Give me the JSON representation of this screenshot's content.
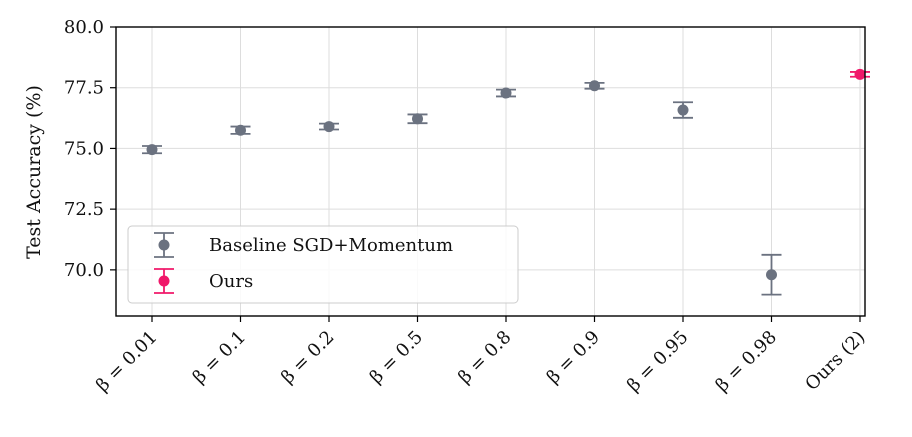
{
  "chart_data": {
    "type": "scatter",
    "title": "",
    "xlabel": "",
    "ylabel": "Test Accuracy (%)",
    "ylim": [
      68.1,
      80.0
    ],
    "yticks": [
      70.0,
      72.5,
      75.0,
      77.5,
      80.0
    ],
    "ytick_labels": [
      "70.0",
      "72.5",
      "75.0",
      "77.5",
      "80.0"
    ],
    "grid": true,
    "legend_position": "lower-left",
    "categories": [
      "β = 0.01",
      "β = 0.1",
      "β = 0.2",
      "β = 0.5",
      "β = 0.8",
      "β = 0.9",
      "β = 0.95",
      "β = 0.98",
      "Ours (2)"
    ],
    "series": [
      {
        "name": "Baseline SGD+Momentum",
        "color": "#6b7280",
        "category_index": [
          0,
          1,
          2,
          3,
          4,
          5,
          6,
          7
        ],
        "values": [
          74.95,
          75.75,
          75.9,
          76.22,
          77.28,
          77.58,
          76.58,
          69.8
        ],
        "err": [
          0.15,
          0.15,
          0.12,
          0.18,
          0.14,
          0.12,
          0.32,
          0.82
        ]
      },
      {
        "name": "Ours",
        "color": "#f0186a",
        "category_index": [
          8
        ],
        "values": [
          78.05
        ],
        "err": [
          0.1
        ]
      }
    ]
  }
}
